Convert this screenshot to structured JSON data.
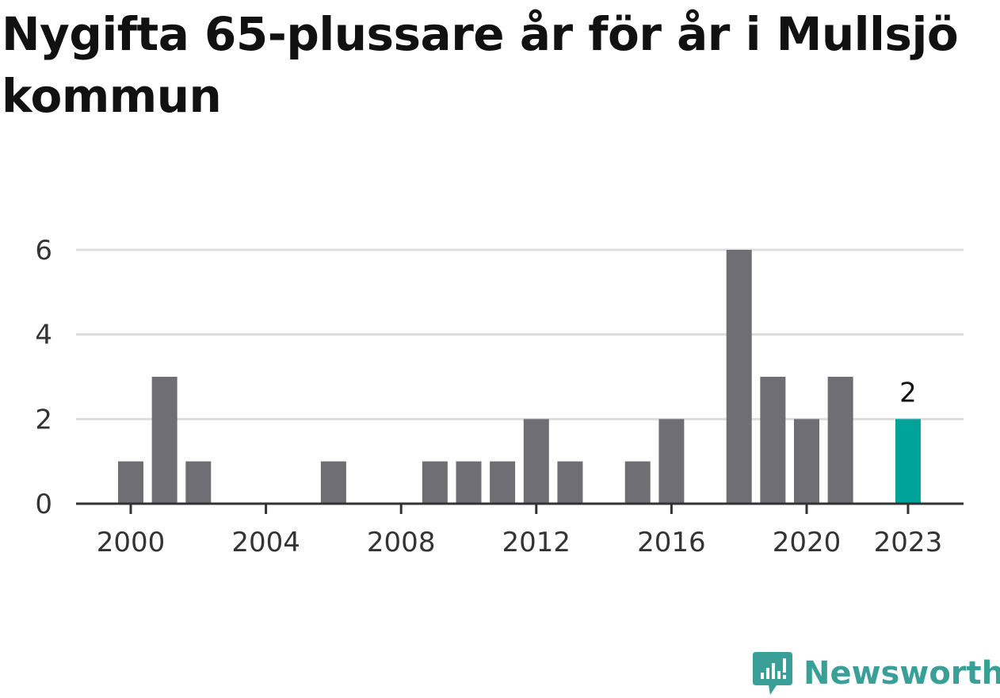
{
  "title": "Nygifta 65-plussare år för år i Mullsjö kommun",
  "brand": {
    "name": "Newsworthy",
    "icon": "newsworthy-logo-icon"
  },
  "colors": {
    "bar": "#6f6e74",
    "highlight": "#00a39a",
    "grid": "#dddddd",
    "axis": "#333333",
    "brand": "#3a9f97"
  },
  "chart_data": {
    "type": "bar",
    "title": "Nygifta 65-plussare år för år i Mullsjö kommun",
    "xlabel": "",
    "ylabel": "",
    "categories": [
      "2000",
      "2001",
      "2002",
      "2003",
      "2004",
      "2005",
      "2006",
      "2007",
      "2008",
      "2009",
      "2010",
      "2011",
      "2012",
      "2013",
      "2014",
      "2015",
      "2016",
      "2017",
      "2018",
      "2019",
      "2020",
      "2021",
      "2022",
      "2023"
    ],
    "values": [
      1,
      3,
      1,
      0,
      0,
      0,
      1,
      0,
      0,
      1,
      1,
      1,
      2,
      1,
      0,
      1,
      2,
      0,
      6,
      3,
      2,
      3,
      0,
      2
    ],
    "highlight_category": "2023",
    "highlight_label": "2",
    "x_ticks": [
      "2000",
      "2004",
      "2008",
      "2012",
      "2016",
      "2020",
      "2023"
    ],
    "y_ticks": [
      0,
      2,
      4,
      6
    ],
    "ylim": [
      0,
      6
    ],
    "grid": true,
    "legend": "none"
  }
}
